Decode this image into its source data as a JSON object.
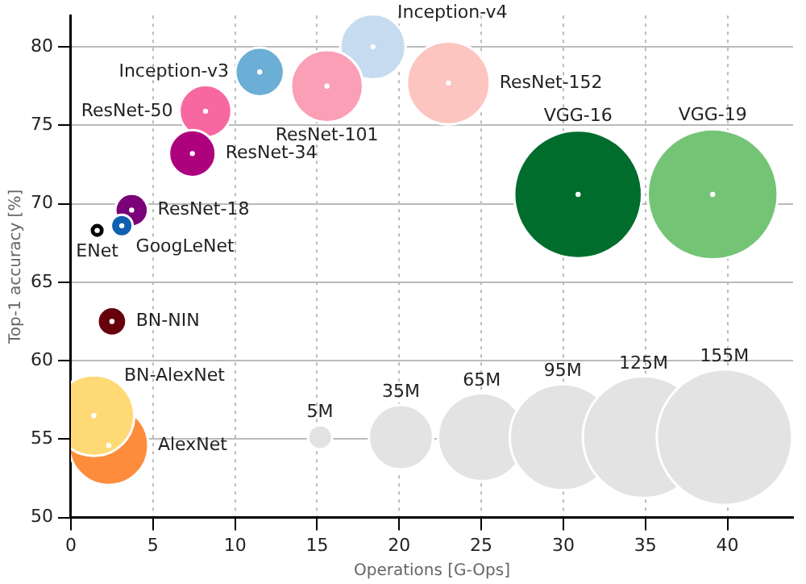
{
  "chart_data": {
    "type": "bubble",
    "xlabel": "Operations [G-Ops]",
    "ylabel": "Top-1 accuracy [%]",
    "xlim": [
      0,
      44
    ],
    "ylim": [
      50,
      82
    ],
    "xticks": [
      0,
      5,
      10,
      15,
      20,
      25,
      30,
      35,
      40
    ],
    "yticks": [
      50,
      55,
      60,
      65,
      70,
      75,
      80
    ],
    "grid": true,
    "legend": false,
    "size_legend": [
      {
        "value": 5,
        "label": "5M"
      },
      {
        "value": 35,
        "label": "35M"
      },
      {
        "value": 65,
        "label": "65M"
      },
      {
        "value": 95,
        "label": "95M"
      },
      {
        "value": 125,
        "label": "125M"
      },
      {
        "value": 155,
        "label": "155M"
      }
    ],
    "series": [
      {
        "name": "BN-AlexNet",
        "color": "#fed976",
        "x": [
          1.4
        ],
        "values": [
          56.5
        ],
        "sizes": [
          55
        ]
      },
      {
        "name": "AlexNet",
        "color": "#fd8d3c",
        "x": [
          2.3
        ],
        "values": [
          54.6
        ],
        "sizes": [
          53
        ]
      },
      {
        "name": "BN-NIN",
        "color": "#67000d",
        "x": [
          2.5
        ],
        "values": [
          62.5
        ],
        "sizes": [
          7
        ]
      },
      {
        "name": "ENet",
        "color": "#000000",
        "x": [
          1.6
        ],
        "values": [
          68.3
        ],
        "sizes": [
          2
        ]
      },
      {
        "name": "GoogLeNet",
        "color": "#1060b0",
        "x": [
          3.1
        ],
        "values": [
          68.6
        ],
        "sizes": [
          4
        ]
      },
      {
        "name": "ResNet-18",
        "color": "#7a0177",
        "x": [
          3.7
        ],
        "values": [
          69.6
        ],
        "sizes": [
          9
        ]
      },
      {
        "name": "ResNet-34",
        "color": "#ae017e",
        "x": [
          7.4
        ],
        "values": [
          73.2
        ],
        "sizes": [
          18.5
        ]
      },
      {
        "name": "ResNet-50",
        "color": "#f768a1",
        "x": [
          8.2
        ],
        "values": [
          75.9
        ],
        "sizes": [
          23
        ]
      },
      {
        "name": "Inception-v3",
        "color": "#6baed6",
        "x": [
          11.5
        ],
        "values": [
          78.4
        ],
        "sizes": [
          20
        ]
      },
      {
        "name": "ResNet-101",
        "color": "#fa9fb5",
        "x": [
          15.6
        ],
        "values": [
          77.5
        ],
        "sizes": [
          44
        ]
      },
      {
        "name": "Inception-v4",
        "color": "#c6dbef",
        "x": [
          18.4
        ],
        "values": [
          80.0
        ],
        "sizes": [
          36
        ]
      },
      {
        "name": "ResNet-152",
        "color": "#fcc5c0",
        "x": [
          23.0
        ],
        "values": [
          77.7
        ],
        "sizes": [
          58
        ]
      },
      {
        "name": "VGG-16",
        "color": "#006d2c",
        "x": [
          30.9
        ],
        "values": [
          70.6
        ],
        "sizes": [
          138
        ]
      },
      {
        "name": "VGG-19",
        "color": "#74c476",
        "x": [
          39.1
        ],
        "values": [
          70.6
        ],
        "sizes": [
          143
        ]
      }
    ]
  }
}
